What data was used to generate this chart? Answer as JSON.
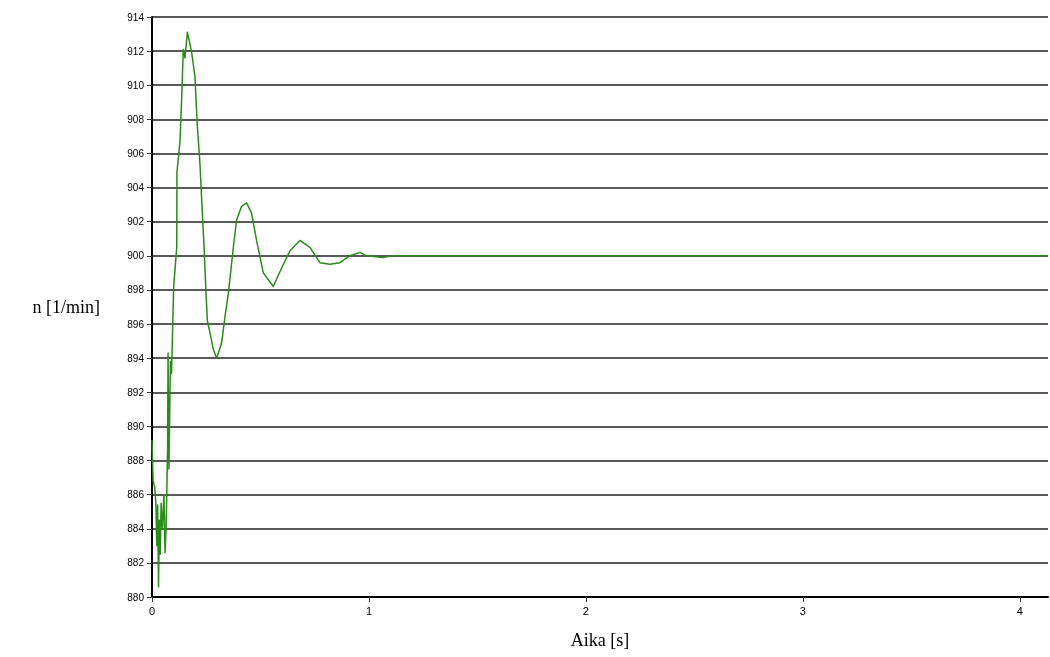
{
  "chart_data": {
    "type": "line",
    "xlabel": "Aika [s]",
    "ylabel": "n [1/min]",
    "xlim": [
      0,
      4.13
    ],
    "xticks": [
      0,
      1,
      2,
      3,
      4
    ],
    "ylim": [
      880,
      914
    ],
    "yticks": [
      880,
      882,
      884,
      886,
      888,
      890,
      892,
      894,
      896,
      898,
      900,
      902,
      904,
      906,
      908,
      910,
      912,
      914
    ],
    "grid": "y",
    "marker": "none",
    "line_style": "solid",
    "series": [
      {
        "color": "#2a8a1a",
        "x": [
          0,
          0.005,
          0.012,
          0.018,
          0.022,
          0.026,
          0.03,
          0.034,
          0.038,
          0.042,
          0.048,
          0.055,
          0.06,
          0.065,
          0.072,
          0.074,
          0.078,
          0.085,
          0.09,
          0.1,
          0.114,
          0.115,
          0.129,
          0.137,
          0.144,
          0.152,
          0.163,
          0.172,
          0.183,
          0.198,
          0.209,
          0.221,
          0.229,
          0.24,
          0.249,
          0.255,
          0.267,
          0.283,
          0.298,
          0.321,
          0.336,
          0.352,
          0.375,
          0.39,
          0.413,
          0.436,
          0.459,
          0.482,
          0.513,
          0.559,
          0.598,
          0.636,
          0.682,
          0.728,
          0.774,
          0.82,
          0.866,
          0.912,
          0.959,
          0.989,
          1.065,
          1.11,
          4.13
        ],
        "values": [
          889.2,
          886.8,
          886.5,
          885.5,
          883,
          885.4,
          880.6,
          884.5,
          882.5,
          885.5,
          884,
          886,
          882.6,
          884,
          888.8,
          894.3,
          887.5,
          893.8,
          893.1,
          898.2,
          900.5,
          904.9,
          906.7,
          909.3,
          912.1,
          911.6,
          913.1,
          912.6,
          911.9,
          910.5,
          907.6,
          905.4,
          903.3,
          900.5,
          897.8,
          896.2,
          895.5,
          894.5,
          894,
          894.9,
          896.4,
          897.8,
          900.5,
          902.1,
          902.9,
          903.1,
          902.5,
          900.9,
          899,
          898.2,
          899.3,
          900.3,
          900.9,
          900.5,
          899.6,
          899.5,
          899.6,
          900,
          900.2,
          900,
          899.9,
          900,
          900
        ]
      }
    ]
  }
}
